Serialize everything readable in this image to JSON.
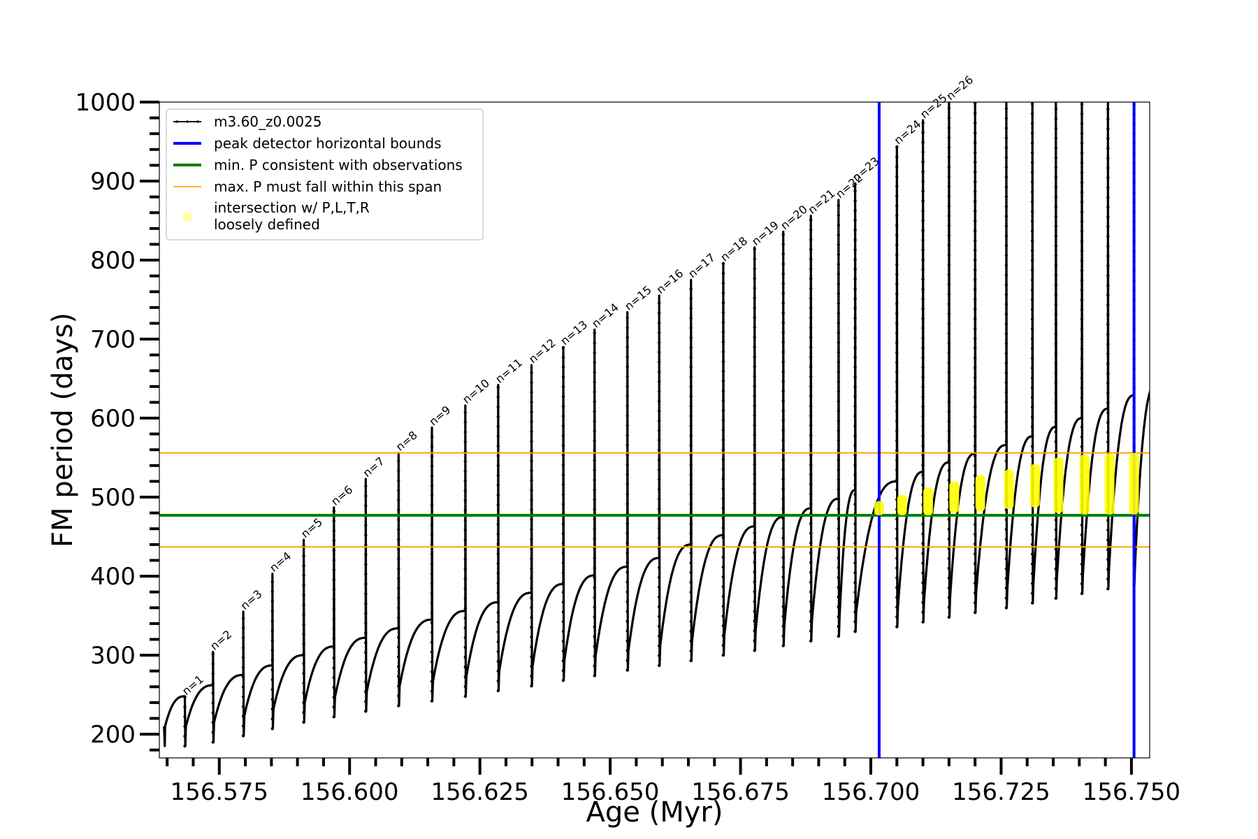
{
  "chart_data": {
    "type": "line",
    "xlabel": "Age (Myr)",
    "ylabel": "FM period (days)",
    "xlim": [
      156.5635,
      156.7535
    ],
    "ylim": [
      170,
      1000
    ],
    "xticks": [
      156.575,
      156.6,
      156.625,
      156.65,
      156.675,
      156.7,
      156.725,
      156.75
    ],
    "xtick_labels": [
      "156.575",
      "156.600",
      "156.625",
      "156.650",
      "156.675",
      "156.700",
      "156.725",
      "156.750"
    ],
    "yticks": [
      200,
      300,
      400,
      500,
      600,
      700,
      800,
      900,
      1000
    ],
    "ytick_labels": [
      "200",
      "300",
      "400",
      "500",
      "600",
      "700",
      "800",
      "900",
      "1000"
    ],
    "legend_position": "upper left",
    "legend": [
      {
        "label": "m3.60_z0.0025",
        "color": "#000000",
        "style": "line-with-dots"
      },
      {
        "label": "peak detector horizontal bounds",
        "color": "#0000ff",
        "style": "line"
      },
      {
        "label": "min. P consistent with observations",
        "color": "#008000",
        "style": "line"
      },
      {
        "label": "max. P must fall within this span",
        "color": "#ffa500",
        "style": "line"
      },
      {
        "label": "intersection w/ P,L,T,R\nloosely defined",
        "color": "#ffff00",
        "style": "marker"
      }
    ],
    "vertical_lines": [
      {
        "x": 156.7016,
        "color": "#0000ff"
      },
      {
        "x": 156.7505,
        "color": "#0000ff"
      }
    ],
    "horizontal_lines": [
      {
        "y": 477,
        "color": "#008000"
      },
      {
        "y": 437,
        "color": "#ffa500"
      },
      {
        "y": 556,
        "color": "#ffa500"
      }
    ],
    "series": [
      {
        "name": "m3.60_z0.0025",
        "color": "#000000",
        "start": {
          "x": 156.5644,
          "y": 210
        },
        "end": {
          "x": 156.7552,
          "y": 625
        },
        "pulses": [
          {
            "n": 1,
            "x": 156.5684,
            "peak": 247,
            "min": 185,
            "level_before": 248
          },
          {
            "n": 2,
            "x": 156.5738,
            "peak": 304,
            "min": 190,
            "level_before": 262
          },
          {
            "n": 3,
            "x": 156.5796,
            "peak": 355,
            "min": 198,
            "level_before": 275
          },
          {
            "n": 4,
            "x": 156.5852,
            "peak": 403,
            "min": 207,
            "level_before": 287
          },
          {
            "n": 5,
            "x": 156.5912,
            "peak": 446,
            "min": 215,
            "level_before": 300
          },
          {
            "n": 6,
            "x": 156.597,
            "peak": 487,
            "min": 222,
            "level_before": 311
          },
          {
            "n": 7,
            "x": 156.6031,
            "peak": 523,
            "min": 229,
            "level_before": 322
          },
          {
            "n": 8,
            "x": 156.6094,
            "peak": 556,
            "min": 236,
            "level_before": 334
          },
          {
            "n": 9,
            "x": 156.6158,
            "peak": 588,
            "min": 242,
            "level_before": 345
          },
          {
            "n": 10,
            "x": 156.6222,
            "peak": 616,
            "min": 248,
            "level_before": 356
          },
          {
            "n": 11,
            "x": 156.6285,
            "peak": 642,
            "min": 255,
            "level_before": 367
          },
          {
            "n": 12,
            "x": 156.6349,
            "peak": 667,
            "min": 261,
            "level_before": 379
          },
          {
            "n": 13,
            "x": 156.641,
            "peak": 690,
            "min": 268,
            "level_before": 390
          },
          {
            "n": 14,
            "x": 156.647,
            "peak": 712,
            "min": 274,
            "level_before": 401
          },
          {
            "n": 15,
            "x": 156.6533,
            "peak": 734,
            "min": 281,
            "level_before": 412
          },
          {
            "n": 16,
            "x": 156.6594,
            "peak": 755,
            "min": 287,
            "level_before": 423
          },
          {
            "n": 17,
            "x": 156.6655,
            "peak": 775,
            "min": 293,
            "level_before": 440
          },
          {
            "n": 18,
            "x": 156.6717,
            "peak": 796,
            "min": 300,
            "level_before": 452
          },
          {
            "n": 19,
            "x": 156.6777,
            "peak": 816,
            "min": 306,
            "level_before": 463
          },
          {
            "n": 20,
            "x": 156.6832,
            "peak": 836,
            "min": 312,
            "level_before": 475
          },
          {
            "n": 21,
            "x": 156.6885,
            "peak": 856,
            "min": 318,
            "level_before": 486
          },
          {
            "n": 22,
            "x": 156.6938,
            "peak": 876,
            "min": 324,
            "level_before": 498
          },
          {
            "n": 23,
            "x": 156.697,
            "peak": 897,
            "min": 330,
            "level_before": 509
          },
          {
            "n": 24,
            "x": 156.705,
            "peak": 944,
            "min": 336,
            "level_before": 520
          },
          {
            "n": 25,
            "x": 156.71,
            "peak": 977,
            "min": 342,
            "level_before": 532
          },
          {
            "n": 26,
            "x": 156.715,
            "peak": 1000,
            "min": 348,
            "level_before": 544
          },
          {
            "n": null,
            "x": 156.72,
            "peak": 1000,
            "min": 354,
            "level_before": 555
          },
          {
            "n": null,
            "x": 156.726,
            "peak": 1000,
            "min": 360,
            "level_before": 566
          },
          {
            "n": null,
            "x": 156.731,
            "peak": 1000,
            "min": 366,
            "level_before": 577
          },
          {
            "n": null,
            "x": 156.7355,
            "peak": 1000,
            "min": 372,
            "level_before": 589
          },
          {
            "n": null,
            "x": 156.7405,
            "peak": 1000,
            "min": 378,
            "level_before": 600
          },
          {
            "n": null,
            "x": 156.7455,
            "peak": 1000,
            "min": 384,
            "level_before": 612
          },
          {
            "n": null,
            "x": 156.7505,
            "peak": 1000,
            "min": 390,
            "level_before": 629
          }
        ],
        "final_level": 643
      },
      {
        "name": "intersection w/ P,L,T,R loosely defined",
        "color": "#ffff00",
        "segments": [
          {
            "x": 156.7016,
            "y_low": 477,
            "y_high": 495
          },
          {
            "x": 156.706,
            "y_low": 477,
            "y_high": 503
          },
          {
            "x": 156.711,
            "y_low": 477,
            "y_high": 512
          },
          {
            "x": 156.716,
            "y_low": 480,
            "y_high": 520
          },
          {
            "x": 156.721,
            "y_low": 482,
            "y_high": 528
          },
          {
            "x": 156.7265,
            "y_low": 485,
            "y_high": 535
          },
          {
            "x": 156.7315,
            "y_low": 487,
            "y_high": 542
          },
          {
            "x": 156.736,
            "y_low": 480,
            "y_high": 550
          },
          {
            "x": 156.741,
            "y_low": 478,
            "y_high": 554
          },
          {
            "x": 156.7458,
            "y_low": 478,
            "y_high": 555
          },
          {
            "x": 156.7505,
            "y_low": 478,
            "y_high": 556
          }
        ]
      }
    ]
  }
}
